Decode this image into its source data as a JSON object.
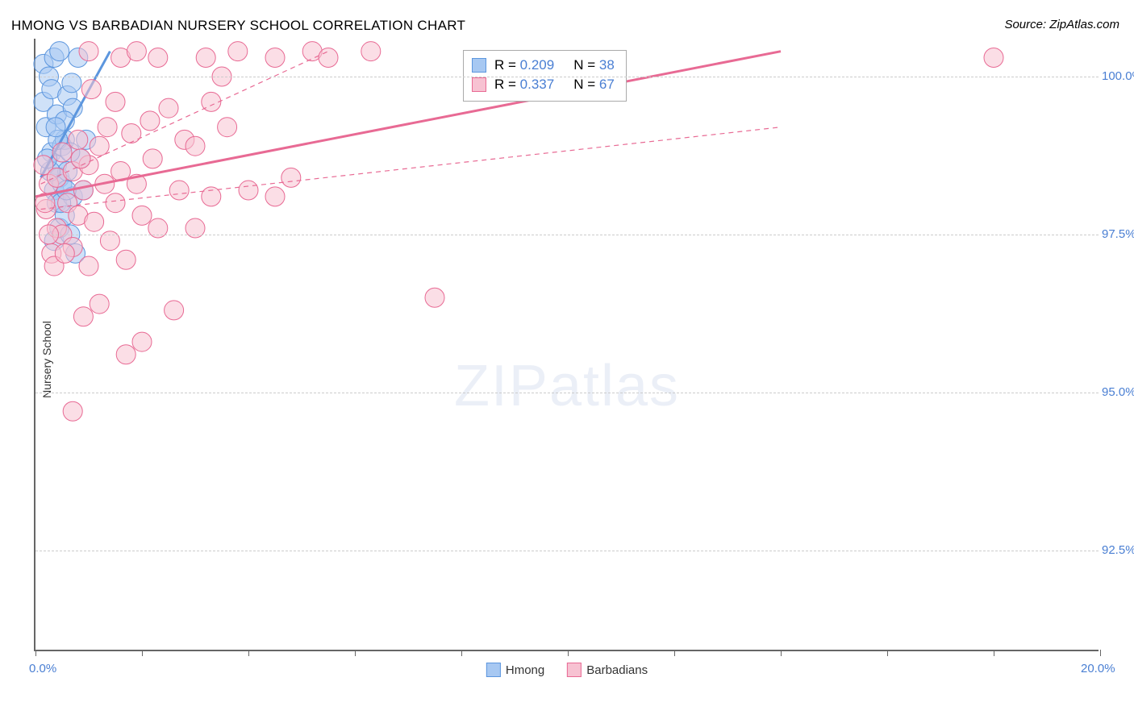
{
  "title": "HMONG VS BARBADIAN NURSERY SCHOOL CORRELATION CHART",
  "source": "Source: ZipAtlas.com",
  "watermark_a": "ZIP",
  "watermark_b": "atlas",
  "chart": {
    "type": "scatter",
    "xlim": [
      0,
      20
    ],
    "ylim": [
      90.9,
      100.6
    ],
    "x_ticks": [
      0,
      2,
      4,
      6,
      8,
      10,
      12,
      14,
      16,
      18,
      20
    ],
    "x_tick_labels": {
      "0": "0.0%",
      "20": "20.0%"
    },
    "y_ticks": [
      92.5,
      95.0,
      97.5,
      100.0
    ],
    "y_tick_labels": [
      "92.5%",
      "95.0%",
      "97.5%",
      "100.0%"
    ],
    "y_axis_label": "Nursery School",
    "grid_color": "#cccccc",
    "axis_color": "#666666",
    "tick_label_color": "#4a7fd3",
    "tick_label_fontsize": 15,
    "title_fontsize": 17,
    "title_color": "#333333",
    "point_radius": 12,
    "point_opacity": 0.55,
    "series": [
      {
        "name": "Hmong",
        "fill": "#a7c8f2",
        "stroke": "#5c96de",
        "trend": {
          "x1": 0.1,
          "y1": 98.4,
          "x2": 1.4,
          "y2": 100.4,
          "width": 3
        },
        "R": "0.209",
        "N": "38",
        "points": [
          [
            0.15,
            100.2
          ],
          [
            0.15,
            99.6
          ],
          [
            0.2,
            99.2
          ],
          [
            0.25,
            100.0
          ],
          [
            0.3,
            99.8
          ],
          [
            0.3,
            98.8
          ],
          [
            0.35,
            100.3
          ],
          [
            0.35,
            98.2
          ],
          [
            0.35,
            97.4
          ],
          [
            0.4,
            99.4
          ],
          [
            0.4,
            98.6
          ],
          [
            0.4,
            98.0
          ],
          [
            0.45,
            100.4
          ],
          [
            0.45,
            98.4
          ],
          [
            0.45,
            97.6
          ],
          [
            0.5,
            98.9
          ],
          [
            0.5,
            98.3
          ],
          [
            0.55,
            99.0
          ],
          [
            0.55,
            97.8
          ],
          [
            0.6,
            99.7
          ],
          [
            0.6,
            98.5
          ],
          [
            0.65,
            97.5
          ],
          [
            0.7,
            99.5
          ],
          [
            0.7,
            98.1
          ],
          [
            0.75,
            97.2
          ],
          [
            0.8,
            100.3
          ],
          [
            0.85,
            98.7
          ],
          [
            0.9,
            98.2
          ],
          [
            0.95,
            99.0
          ],
          [
            0.42,
            99.0
          ],
          [
            0.28,
            98.5
          ],
          [
            0.55,
            99.3
          ],
          [
            0.65,
            98.8
          ],
          [
            0.38,
            99.2
          ],
          [
            0.48,
            98.0
          ],
          [
            0.58,
            98.2
          ],
          [
            0.22,
            98.7
          ],
          [
            0.68,
            99.9
          ]
        ]
      },
      {
        "name": "Barbadians",
        "fill": "#f7c2d2",
        "stroke": "#e86a94",
        "trend": {
          "x1": 0.0,
          "y1": 98.1,
          "x2": 14.0,
          "y2": 100.4,
          "width": 3
        },
        "conf_bands": [
          {
            "x1": 0.1,
            "y1": 98.3,
            "x2": 5.5,
            "y2": 100.4
          },
          {
            "x1": 0.1,
            "y1": 97.9,
            "x2": 14.0,
            "y2": 99.2
          }
        ],
        "R": "0.337",
        "N": "67",
        "points": [
          [
            0.15,
            98.6
          ],
          [
            0.2,
            97.9
          ],
          [
            0.25,
            98.3
          ],
          [
            0.3,
            97.2
          ],
          [
            0.4,
            98.4
          ],
          [
            0.4,
            97.6
          ],
          [
            0.5,
            98.8
          ],
          [
            0.5,
            97.5
          ],
          [
            0.6,
            98.0
          ],
          [
            0.7,
            98.5
          ],
          [
            0.7,
            97.3
          ],
          [
            0.8,
            99.0
          ],
          [
            0.8,
            97.8
          ],
          [
            0.9,
            98.2
          ],
          [
            0.9,
            96.2
          ],
          [
            1.0,
            100.4
          ],
          [
            1.0,
            98.6
          ],
          [
            1.0,
            97.0
          ],
          [
            1.1,
            97.7
          ],
          [
            1.2,
            98.9
          ],
          [
            1.2,
            96.4
          ],
          [
            1.3,
            98.3
          ],
          [
            1.4,
            97.4
          ],
          [
            1.5,
            99.6
          ],
          [
            1.5,
            98.0
          ],
          [
            1.6,
            100.3
          ],
          [
            1.6,
            98.5
          ],
          [
            1.7,
            97.1
          ],
          [
            1.7,
            95.6
          ],
          [
            1.8,
            99.1
          ],
          [
            1.9,
            98.3
          ],
          [
            1.9,
            100.4
          ],
          [
            2.0,
            97.8
          ],
          [
            2.0,
            95.8
          ],
          [
            2.2,
            98.7
          ],
          [
            2.3,
            97.6
          ],
          [
            2.3,
            100.3
          ],
          [
            2.5,
            99.5
          ],
          [
            2.6,
            96.3
          ],
          [
            2.7,
            98.2
          ],
          [
            2.8,
            99.0
          ],
          [
            3.0,
            98.9
          ],
          [
            3.0,
            97.6
          ],
          [
            3.2,
            100.3
          ],
          [
            3.3,
            99.6
          ],
          [
            3.3,
            98.1
          ],
          [
            3.6,
            99.2
          ],
          [
            3.8,
            100.4
          ],
          [
            4.0,
            98.2
          ],
          [
            4.5,
            100.3
          ],
          [
            4.5,
            98.1
          ],
          [
            4.8,
            98.4
          ],
          [
            5.2,
            100.4
          ],
          [
            5.5,
            100.3
          ],
          [
            6.3,
            100.4
          ],
          [
            7.5,
            96.5
          ],
          [
            0.7,
            94.7
          ],
          [
            18.0,
            100.3
          ],
          [
            0.35,
            97.0
          ],
          [
            0.55,
            97.2
          ],
          [
            0.25,
            97.5
          ],
          [
            0.85,
            98.7
          ],
          [
            1.35,
            99.2
          ],
          [
            2.15,
            99.3
          ],
          [
            1.05,
            99.8
          ],
          [
            3.5,
            100.0
          ],
          [
            0.18,
            98.0
          ]
        ]
      }
    ],
    "stats_box": {
      "border_color": "#aaaaaa",
      "text_color": "#333333",
      "value_color": "#4a7fd3",
      "fontsize": 17
    },
    "bottom_legend_fontsize": 15
  }
}
